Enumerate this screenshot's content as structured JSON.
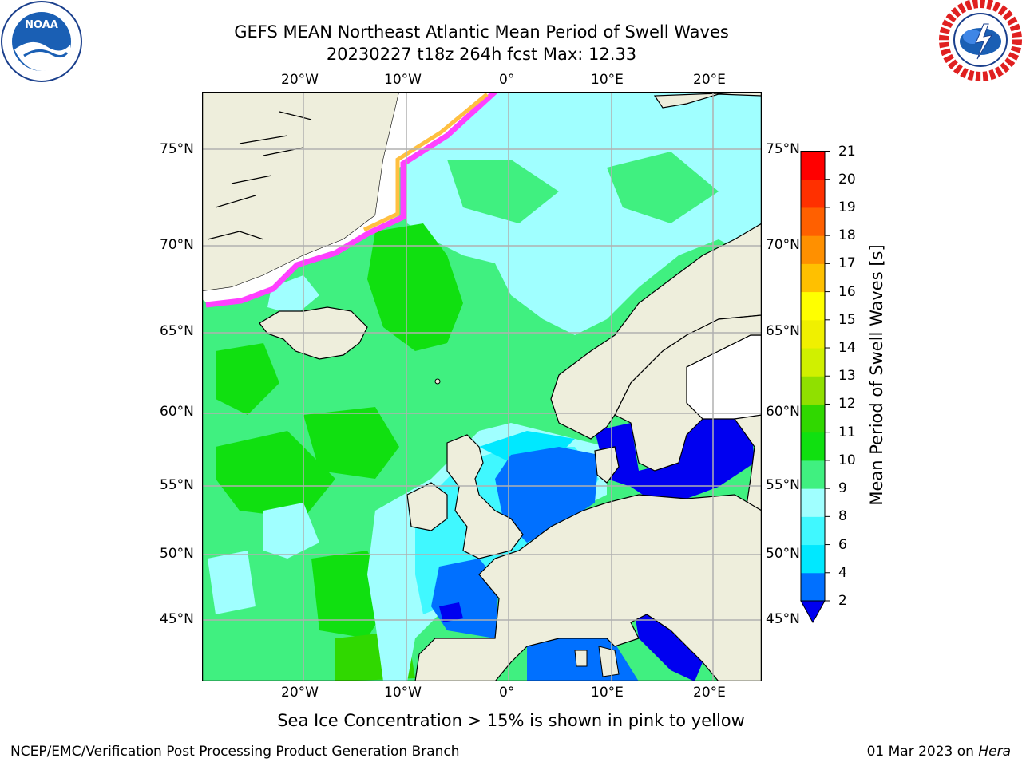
{
  "header": {
    "title_line1": "GEFS MEAN Northeast Atlantic Mean Period of Swell Waves",
    "title_line2": "20230227 t18z 264h fcst   Max: 12.33"
  },
  "logos": {
    "left_name": "NOAA",
    "right_name": "NATIONAL WEATHER SERVICE"
  },
  "map": {
    "lon_labels": [
      "20°W",
      "10°W",
      "0°",
      "10°E",
      "20°E"
    ],
    "lat_labels": [
      "75°N",
      "70°N",
      "65°N",
      "60°N",
      "55°N",
      "50°N",
      "45°N"
    ],
    "caption": "Sea Ice Concentration > 15% is shown in pink to yellow"
  },
  "colorbar": {
    "label": "Mean Period of Swell Waves [s]",
    "ticks": [
      "2",
      "4",
      "6",
      "8",
      "9",
      "10",
      "11",
      "12",
      "13",
      "14",
      "15",
      "16",
      "17",
      "18",
      "19",
      "20",
      "21"
    ],
    "colors": [
      "#0000f0",
      "#0070ff",
      "#00e8ff",
      "#40f8ff",
      "#a0ffff",
      "#40f080",
      "#10e010",
      "#30d800",
      "#90e000",
      "#d0f000",
      "#f0f000",
      "#ffff00",
      "#ffc000",
      "#ff9000",
      "#ff6000",
      "#ff3000",
      "#ff0000"
    ],
    "extend_color": "#0000f0"
  },
  "footer": {
    "left": "NCEP/EMC/Verification Post Processing Product Generation Branch",
    "right_date": "01 Mar 2023 on ",
    "right_host": "Hera"
  },
  "colors": {
    "land": "#eeeedc",
    "ocean_green": "#40f080",
    "ocean_bright_green": "#10e010",
    "ocean_light_cyan": "#a0ffff",
    "ocean_cyan": "#40f8ff",
    "ocean_blue": "#0070ff",
    "ocean_dark_blue": "#0000f0",
    "ice_pink": "#ff40ff",
    "ice_orange": "#ffc040",
    "grid": "#b0b0b0"
  }
}
